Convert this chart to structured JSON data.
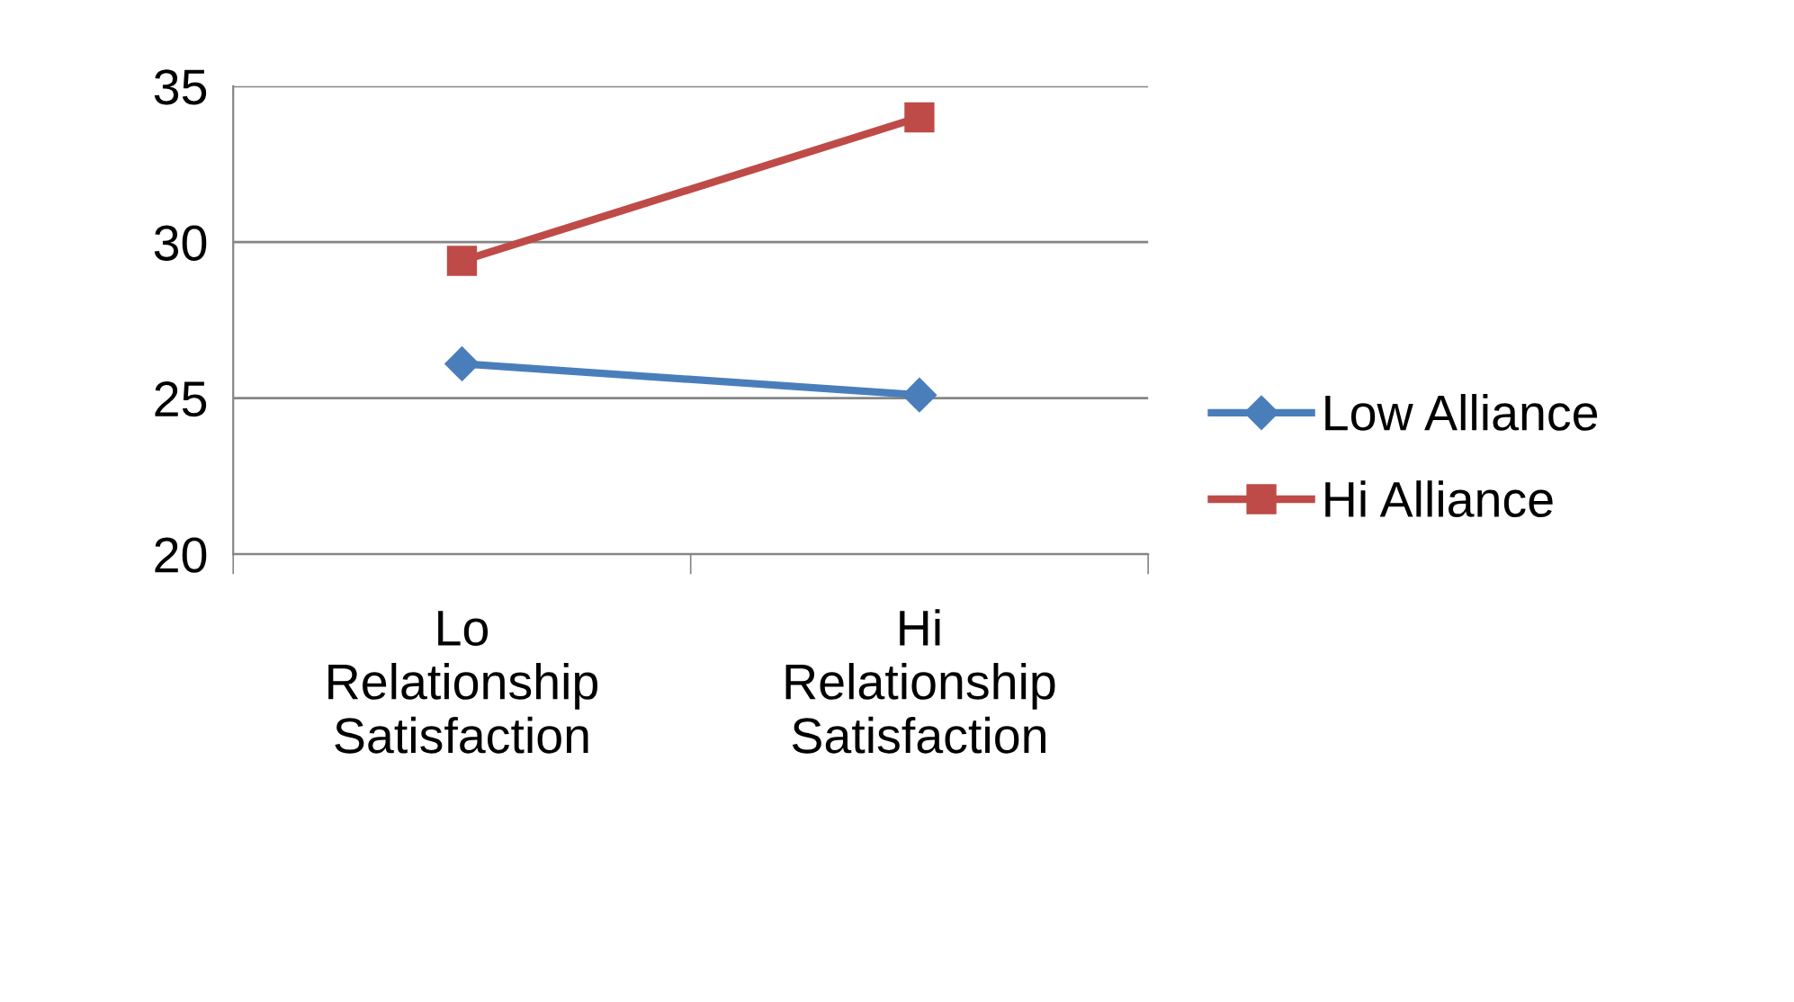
{
  "chart_data": {
    "type": "line",
    "categories": [
      "Lo\nRelationship\nSatisfaction",
      "Hi\nRelationship\nSatisfaction"
    ],
    "series": [
      {
        "name": "Low Alliance",
        "color": "#4a7ebb",
        "values": [
          26.1,
          25.1
        ],
        "marker": "diamond"
      },
      {
        "name": "Hi Alliance",
        "color": "#be4b48",
        "values": [
          29.4,
          34.0
        ],
        "marker": "square"
      }
    ],
    "ylim": [
      20,
      35
    ],
    "yticks": [
      20,
      25,
      30,
      35
    ],
    "grid": "y",
    "legend": "right",
    "line_style": "solid"
  }
}
